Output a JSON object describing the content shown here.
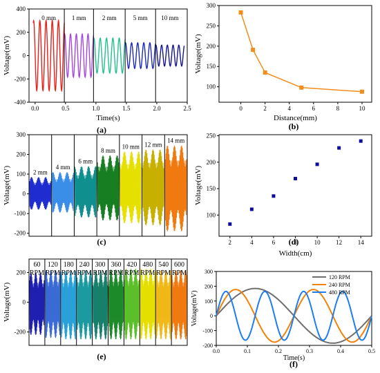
{
  "figure": {
    "captions": [
      "(a)",
      "(b)",
      "(c)",
      "(d)",
      "(e)",
      "(f)"
    ]
  },
  "chart_data": [
    {
      "id": "a",
      "type": "line",
      "xlabel": "Time(s)",
      "ylabel": "Voltage(mV)",
      "xlim": [
        -0.1,
        2.5
      ],
      "ylim": [
        -400,
        400
      ],
      "xticks": [
        0.0,
        0.5,
        1.0,
        1.5,
        2.0,
        2.5
      ],
      "xtick_labels": [
        "0.0",
        "0.5",
        "1.0",
        "1.5",
        "2.0",
        "2.5"
      ],
      "yticks": [
        -400,
        -200,
        0,
        200,
        400
      ],
      "ytick_labels": [
        "-400",
        "-200",
        "0",
        "200",
        "400"
      ],
      "segments": [
        {
          "label": "0 mm",
          "x_start": -0.03,
          "x_end": 0.48,
          "amplitude": 300,
          "cycles": 5,
          "color": "#e8201a"
        },
        {
          "label": "1 mm",
          "x_start": 0.48,
          "x_end": 0.96,
          "amplitude": 185,
          "cycles": 5,
          "color": "#a646e0"
        },
        {
          "label": "2 mm",
          "x_start": 0.96,
          "x_end": 1.48,
          "amplitude": 150,
          "cycles": 5,
          "color": "#22c08d"
        },
        {
          "label": "5 mm",
          "x_start": 1.48,
          "x_end": 1.98,
          "amplitude": 110,
          "cycles": 5,
          "color": "#1c27b8"
        },
        {
          "label": "10 mm",
          "x_start": 1.98,
          "x_end": 2.45,
          "amplitude": 90,
          "cycles": 5,
          "color": "#14148f"
        }
      ]
    },
    {
      "id": "b",
      "type": "line",
      "xlabel": "Distance(mm)",
      "ylabel": "Voltage(mV)",
      "xlim": [
        -1.8,
        10.8
      ],
      "ylim": [
        62,
        300
      ],
      "xticks": [
        0,
        2,
        4,
        6,
        8,
        10
      ],
      "xtick_labels": [
        "0",
        "2",
        "4",
        "6",
        "8",
        "10"
      ],
      "yticks": [
        100,
        150,
        200,
        250,
        300
      ],
      "ytick_labels": [
        "100",
        "150",
        "200",
        "250",
        "300"
      ],
      "color": "#f28c1a",
      "x": [
        0,
        1,
        2,
        5,
        10
      ],
      "y": [
        283,
        191,
        135,
        98,
        88
      ]
    },
    {
      "id": "c",
      "type": "area",
      "ylabel": "Voltage(mV)",
      "ylim": [
        -215,
        300
      ],
      "yticks": [
        -200,
        -100,
        0,
        100,
        200,
        300
      ],
      "ytick_labels": [
        "-200",
        "-100",
        "0",
        "100",
        "200",
        "300"
      ],
      "segments": [
        {
          "label": "2 mm",
          "max": 85,
          "min": -80,
          "color": "#1f2ed0"
        },
        {
          "label": "4 mm",
          "max": 110,
          "min": -95,
          "color": "#3a8ee8"
        },
        {
          "label": "6 mm",
          "max": 140,
          "min": -120,
          "color": "#118f8f"
        },
        {
          "label": "8 mm",
          "max": 195,
          "min": -135,
          "color": "#177f22"
        },
        {
          "label": "10 mm",
          "max": 215,
          "min": -150,
          "color": "#e6e000"
        },
        {
          "label": "12 mm",
          "max": 225,
          "min": -160,
          "color": "#c7b000"
        },
        {
          "label": "14 mm",
          "max": 245,
          "min": -190,
          "color": "#f07a10"
        }
      ]
    },
    {
      "id": "d",
      "type": "scatter",
      "xlabel": "Width(cm)",
      "ylabel": "Voltage(mV)",
      "xlim": [
        1,
        15
      ],
      "ylim": [
        60,
        252
      ],
      "xticks": [
        2,
        4,
        6,
        8,
        10,
        12,
        14
      ],
      "xtick_labels": [
        "2",
        "4",
        "6",
        "8",
        "10",
        "12",
        "14"
      ],
      "yticks": [
        100,
        150,
        200,
        250
      ],
      "ytick_labels": [
        "100",
        "150",
        "200",
        "250"
      ],
      "color": "#0d0d9a",
      "x": [
        2,
        4,
        6,
        8,
        10,
        12,
        14
      ],
      "y": [
        83,
        111,
        136,
        169,
        196,
        227,
        240
      ]
    },
    {
      "id": "e",
      "type": "area",
      "ylabel": "Voltage(mV)",
      "ylim": [
        -290,
        290
      ],
      "yticks": [
        -200,
        0,
        200
      ],
      "ytick_labels": [
        "-200",
        "0",
        "200"
      ],
      "segments": [
        {
          "label1": "60",
          "label2": "RPM",
          "max": 200,
          "min": -220,
          "color": "#2020b0"
        },
        {
          "label1": "120",
          "label2": "RPM",
          "max": 215,
          "min": -240,
          "color": "#3b6bd6"
        },
        {
          "label1": "180",
          "label2": "RPM",
          "max": 210,
          "min": -250,
          "color": "#2aa0d8"
        },
        {
          "label1": "240",
          "label2": "RPM",
          "max": 215,
          "min": -250,
          "color": "#1b9aa0"
        },
        {
          "label1": "300",
          "label2": "RPM",
          "max": 215,
          "min": -250,
          "color": "#18806a"
        },
        {
          "label1": "360",
          "label2": "RPM",
          "max": 220,
          "min": -250,
          "color": "#1e8a2a"
        },
        {
          "label1": "420",
          "label2": "RPM",
          "max": 225,
          "min": -250,
          "color": "#5cbf2a"
        },
        {
          "label1": "480",
          "label2": "RPM",
          "max": 225,
          "min": -250,
          "color": "#e5df00"
        },
        {
          "label1": "540",
          "label2": "RPM",
          "max": 215,
          "min": -250,
          "color": "#f0b818"
        },
        {
          "label1": "600",
          "label2": "RPM",
          "max": 215,
          "min": -250,
          "color": "#f07a10"
        }
      ]
    },
    {
      "id": "f",
      "type": "line",
      "xlabel": "Time(s)",
      "ylabel": "Voltage(mV)",
      "xlim": [
        0.0,
        0.5
      ],
      "ylim": [
        -200,
        300
      ],
      "xticks": [
        0.0,
        0.1,
        0.2,
        0.3,
        0.4,
        0.5
      ],
      "xtick_labels": [
        "0.0",
        "0.1",
        "0.2",
        "0.3",
        "0.4",
        "0.5"
      ],
      "yticks": [
        -200,
        -100,
        0,
        100,
        200,
        300
      ],
      "ytick_labels": [
        "-200",
        "-100",
        "0",
        "100",
        "200",
        "300"
      ],
      "legend_position": "top-right",
      "series": [
        {
          "name": "120 RPM",
          "color": "#6e6e6e",
          "amplitude": 185,
          "period": 0.5
        },
        {
          "name": "240 RPM",
          "color": "#f0820a",
          "amplitude": 178,
          "period": 0.25
        },
        {
          "name": "480 RPM",
          "color": "#1c7cf0",
          "amplitude": 165,
          "period": 0.125
        }
      ]
    }
  ]
}
